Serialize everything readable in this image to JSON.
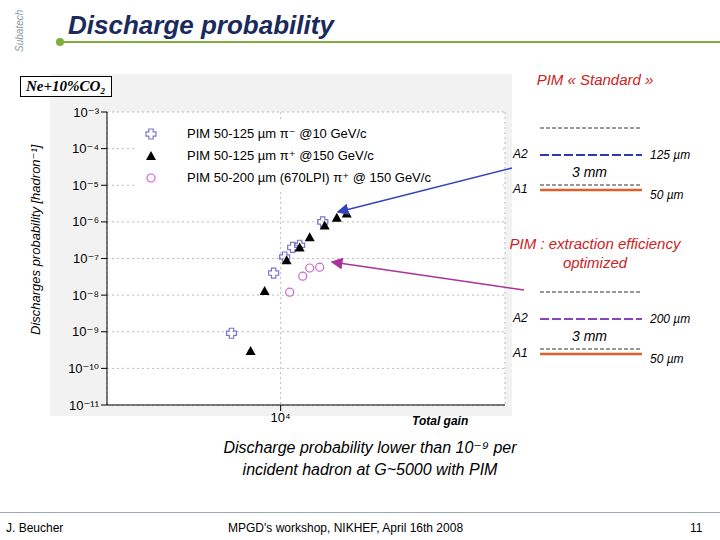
{
  "header": {
    "title": "Discharge probability",
    "logo": "Subatech"
  },
  "chart_data": {
    "type": "scatter",
    "annotation": "Ne+10%CO₂",
    "ylabel": "Discharges probability [hadron⁻¹]",
    "xlabel": "Total gain",
    "log": true,
    "grid": true,
    "xlim": [
      2000,
      80000
    ],
    "xticks": [
      {
        "value": 10000,
        "label": "10⁴"
      }
    ],
    "ylim": [
      1e-11,
      0.001
    ],
    "yticks": [
      {
        "value": 0.001,
        "label": "10⁻³"
      },
      {
        "value": 0.0001,
        "label": "10⁻⁴"
      },
      {
        "value": 1e-05,
        "label": "10⁻⁵"
      },
      {
        "value": 1e-06,
        "label": "10⁻⁶"
      },
      {
        "value": 1e-07,
        "label": "10⁻⁷"
      },
      {
        "value": 1e-08,
        "label": "10⁻⁸"
      },
      {
        "value": 1e-09,
        "label": "10⁻⁹"
      },
      {
        "value": 1e-10,
        "label": "10⁻¹⁰"
      },
      {
        "value": 1e-11,
        "label": "10⁻¹¹"
      }
    ],
    "series": [
      {
        "name": "PIM 50-125 µm π⁻ @10 GeV/c",
        "color": "#7777cc",
        "marker": "plus",
        "x": [
          6340,
          9370,
          10380,
          11180,
          11930,
          14770
        ],
        "y": [
          9.1e-10,
          4e-08,
          1.1e-07,
          2e-07,
          2.3e-07,
          1e-06
        ]
      },
      {
        "name": "PIM 50-125 µm π⁺ @150 GeV/c",
        "color": "#000000",
        "marker": "triangle",
        "x": [
          7570,
          8620,
          10570,
          11930,
          13090,
          15040,
          16830,
          18450
        ],
        "y": [
          3e-10,
          1.3e-08,
          9e-08,
          2e-07,
          3.8e-07,
          8e-07,
          1.3e-06,
          1.7e-06
        ]
      },
      {
        "name": "PIM 50-200 µm (670LPI) π⁺ @ 150 GeV/c",
        "color": "#cc66cc",
        "marker": "circle",
        "x": [
          10870,
          12270,
          13090,
          14360
        ],
        "y": [
          1.2e-08,
          3.3e-08,
          5.5e-08,
          5.8e-08
        ]
      }
    ]
  },
  "diagrams": [
    {
      "title": "PIM « Standard »",
      "top_label": "A2",
      "top_gap": "125 µm",
      "gap": "3 mm",
      "bottom_label": "A1",
      "bottom_gap": "50 µm"
    },
    {
      "title": "PIM : extraction efficiency optimized",
      "top_label": "A2",
      "top_gap": "200 µm",
      "gap": "3 mm",
      "bottom_label": "A1",
      "bottom_gap": "50 µm"
    }
  ],
  "conclusion": [
    "Discharge probability lower than 10⁻⁹ per",
    "incident hadron at G~5000 with PIM"
  ],
  "footer": {
    "author": "J. Beucher",
    "event": "MPGD's workshop, NIKHEF, April 16th 2008",
    "page": 11
  }
}
